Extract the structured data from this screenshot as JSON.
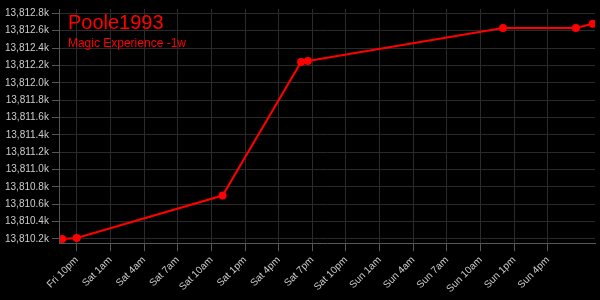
{
  "chart_data": {
    "type": "line",
    "title": "Poole1993",
    "subtitle": "Magic Experience -1w",
    "x": [
      -1.3,
      0,
      13,
      20,
      20.6,
      38,
      44.5,
      46
    ],
    "values": [
      13810200,
      13810210,
      13810700,
      13812240,
      13812250,
      13812630,
      13812630,
      13812680
    ],
    "color": "#ff0000",
    "marker": "circle",
    "xlim": [
      -1.5,
      46.2
    ],
    "xticks": [
      {
        "value": 0,
        "label": "Fri 10pm"
      },
      {
        "value": 3,
        "label": "Sat 1am"
      },
      {
        "value": 6,
        "label": "Sat 4am"
      },
      {
        "value": 9,
        "label": "Sat 7am"
      },
      {
        "value": 12,
        "label": "Sat 10am"
      },
      {
        "value": 15,
        "label": "Sat 1pm"
      },
      {
        "value": 18,
        "label": "Sat 4pm"
      },
      {
        "value": 21,
        "label": "Sat 7pm"
      },
      {
        "value": 24,
        "label": "Sat 10pm"
      },
      {
        "value": 27,
        "label": "Sun 1am"
      },
      {
        "value": 30,
        "label": "Sun 4am"
      },
      {
        "value": 33,
        "label": "Sun 7am"
      },
      {
        "value": 36,
        "label": "Sun 10am"
      },
      {
        "value": 39,
        "label": "Sun 1pm"
      },
      {
        "value": 42,
        "label": "Sun 4pm"
      }
    ],
    "ylim": [
      13810150,
      13812850
    ],
    "yticks": [
      {
        "value": 13810200,
        "label": "13,810.2k"
      },
      {
        "value": 13810400,
        "label": "13,810.4k"
      },
      {
        "value": 13810600,
        "label": "13,810.6k"
      },
      {
        "value": 13810800,
        "label": "13,810.8k"
      },
      {
        "value": 13811000,
        "label": "13,811.0k"
      },
      {
        "value": 13811200,
        "label": "13,811.2k"
      },
      {
        "value": 13811400,
        "label": "13,811.4k"
      },
      {
        "value": 13811600,
        "label": "13,811.6k"
      },
      {
        "value": 13811800,
        "label": "13,811.8k"
      },
      {
        "value": 13812000,
        "label": "13,812.0k"
      },
      {
        "value": 13812200,
        "label": "13,812.2k"
      },
      {
        "value": 13812400,
        "label": "13,812.4k"
      },
      {
        "value": 13812600,
        "label": "13,812.6k"
      },
      {
        "value": 13812800,
        "label": "13,812.8k"
      }
    ],
    "grid": true
  }
}
